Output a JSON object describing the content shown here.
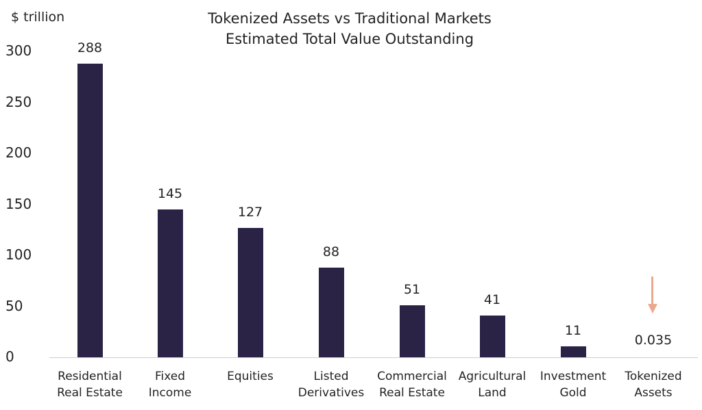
{
  "chart_data": {
    "type": "bar",
    "title": "Tokenized Assets vs Traditional Markets",
    "subtitle": "Estimated Total Value Outstanding",
    "ylabel": "$ trillion",
    "xlabel": "",
    "ylim": [
      0,
      300
    ],
    "yticks": [
      "300",
      "250",
      "200",
      "150",
      "100",
      "50",
      "0"
    ],
    "categories": [
      "Residential Real Estate",
      "Fixed Income",
      "Equities",
      "Listed Derivatives",
      "Commercial Real Estate",
      "Agricultural Land",
      "Investment Gold",
      "Tokenized Assets"
    ],
    "category_lines": [
      [
        "Residential",
        "Real Estate"
      ],
      [
        "Fixed",
        "Income"
      ],
      [
        "Equities",
        ""
      ],
      [
        "Listed",
        "Derivatives"
      ],
      [
        "Commercial",
        "Real Estate"
      ],
      [
        "Agricultural",
        "Land"
      ],
      [
        "Investment",
        "Gold"
      ],
      [
        "Tokenized",
        "Assets"
      ]
    ],
    "values": [
      288,
      145,
      127,
      88,
      51,
      41,
      11,
      0.035
    ],
    "value_labels": [
      "288",
      "145",
      "127",
      "88",
      "51",
      "41",
      "11",
      "0.035"
    ],
    "bar_color": "#2b2346",
    "annotation": {
      "type": "arrow-down",
      "target": "Tokenized Assets",
      "color": "#eaa98f"
    },
    "grid": false,
    "legend": null
  }
}
